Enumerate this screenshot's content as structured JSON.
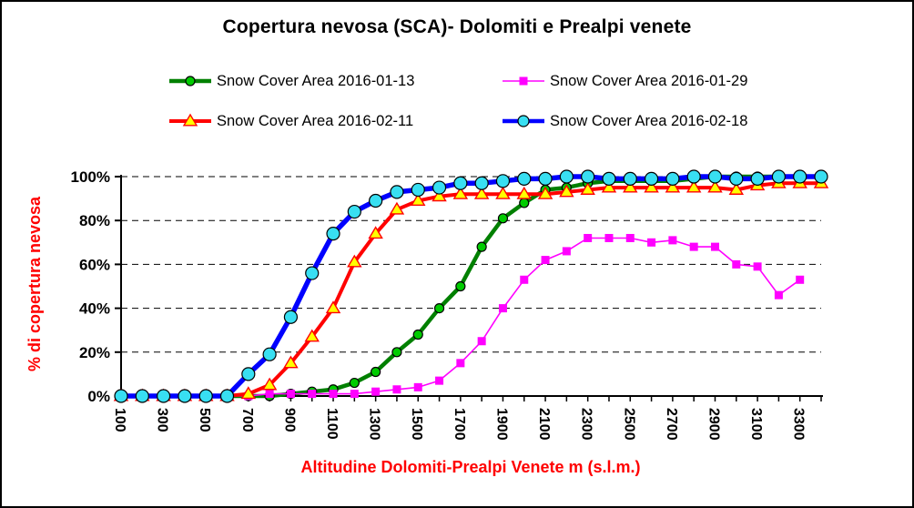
{
  "chart_data": {
    "type": "line",
    "title": "Copertura nevosa (SCA)- Dolomiti e Prealpi venete",
    "xlabel": "Altitudine Dolomiti-Prealpi Venete m (s.l.m.)",
    "ylabel": "% di copertura nevosa",
    "ylim": [
      0,
      100
    ],
    "grid": "horizontal-dashed",
    "legend_position": "top",
    "axis_title_color": "#FF0000",
    "text_color": "#000000",
    "y_tick_labels": [
      "0%",
      "20%",
      "40%",
      "60%",
      "80%",
      "100%"
    ],
    "x_tick_labels": [
      "100",
      "300",
      "500",
      "700",
      "900",
      "1100",
      "1300",
      "1500",
      "1700",
      "1900",
      "2100",
      "2300",
      "2500",
      "2700",
      "2900",
      "3100",
      "3300"
    ],
    "x": [
      100,
      200,
      300,
      400,
      500,
      600,
      700,
      800,
      900,
      1000,
      1100,
      1200,
      1300,
      1400,
      1500,
      1600,
      1700,
      1800,
      1900,
      2000,
      2100,
      2200,
      2300,
      2400,
      2500,
      2600,
      2700,
      2800,
      2900,
      3000,
      3100,
      3200,
      3300,
      3400
    ],
    "series": [
      {
        "name": "Snow Cover Area 2016-01-13",
        "line_color": "#008000",
        "marker": "circle",
        "marker_fill": "#00CC00",
        "values": [
          0,
          0,
          0,
          0,
          0,
          0,
          0,
          0,
          1,
          2,
          3,
          6,
          11,
          20,
          28,
          40,
          50,
          68,
          81,
          88,
          94,
          95,
          97,
          98,
          98,
          98,
          98,
          99,
          100,
          100,
          100,
          100,
          100,
          100
        ]
      },
      {
        "name": "Snow Cover Area 2016-01-29",
        "line_color": "#FF00FF",
        "marker": "square",
        "marker_fill": "#FF00FF",
        "values": [
          0,
          0,
          0,
          0,
          0,
          0,
          0,
          1,
          1,
          1,
          1,
          1,
          2,
          3,
          4,
          7,
          15,
          25,
          40,
          53,
          62,
          66,
          72,
          72,
          72,
          70,
          71,
          68,
          68,
          60,
          59,
          46,
          53,
          null
        ]
      },
      {
        "name": "Snow Cover Area 2016-02-11",
        "line_color": "#FF0000",
        "marker": "triangle",
        "marker_fill": "#FFFF00",
        "values": [
          0,
          0,
          0,
          0,
          0,
          0,
          1,
          5,
          15,
          27,
          40,
          61,
          74,
          85,
          89,
          91,
          92,
          92,
          92,
          92,
          92,
          93,
          94,
          95,
          95,
          95,
          95,
          95,
          95,
          94,
          96,
          97,
          97,
          97
        ]
      },
      {
        "name": "Snow Cover Area 2016-02-18",
        "line_color": "#0000FF",
        "marker": "circle",
        "marker_fill": "#38DFF2",
        "values": [
          0,
          0,
          0,
          0,
          0,
          0,
          10,
          19,
          36,
          56,
          74,
          84,
          89,
          93,
          94,
          95,
          97,
          97,
          98,
          99,
          99,
          100,
          100,
          99,
          99,
          99,
          99,
          100,
          100,
          99,
          99,
          100,
          100,
          100
        ]
      }
    ]
  }
}
